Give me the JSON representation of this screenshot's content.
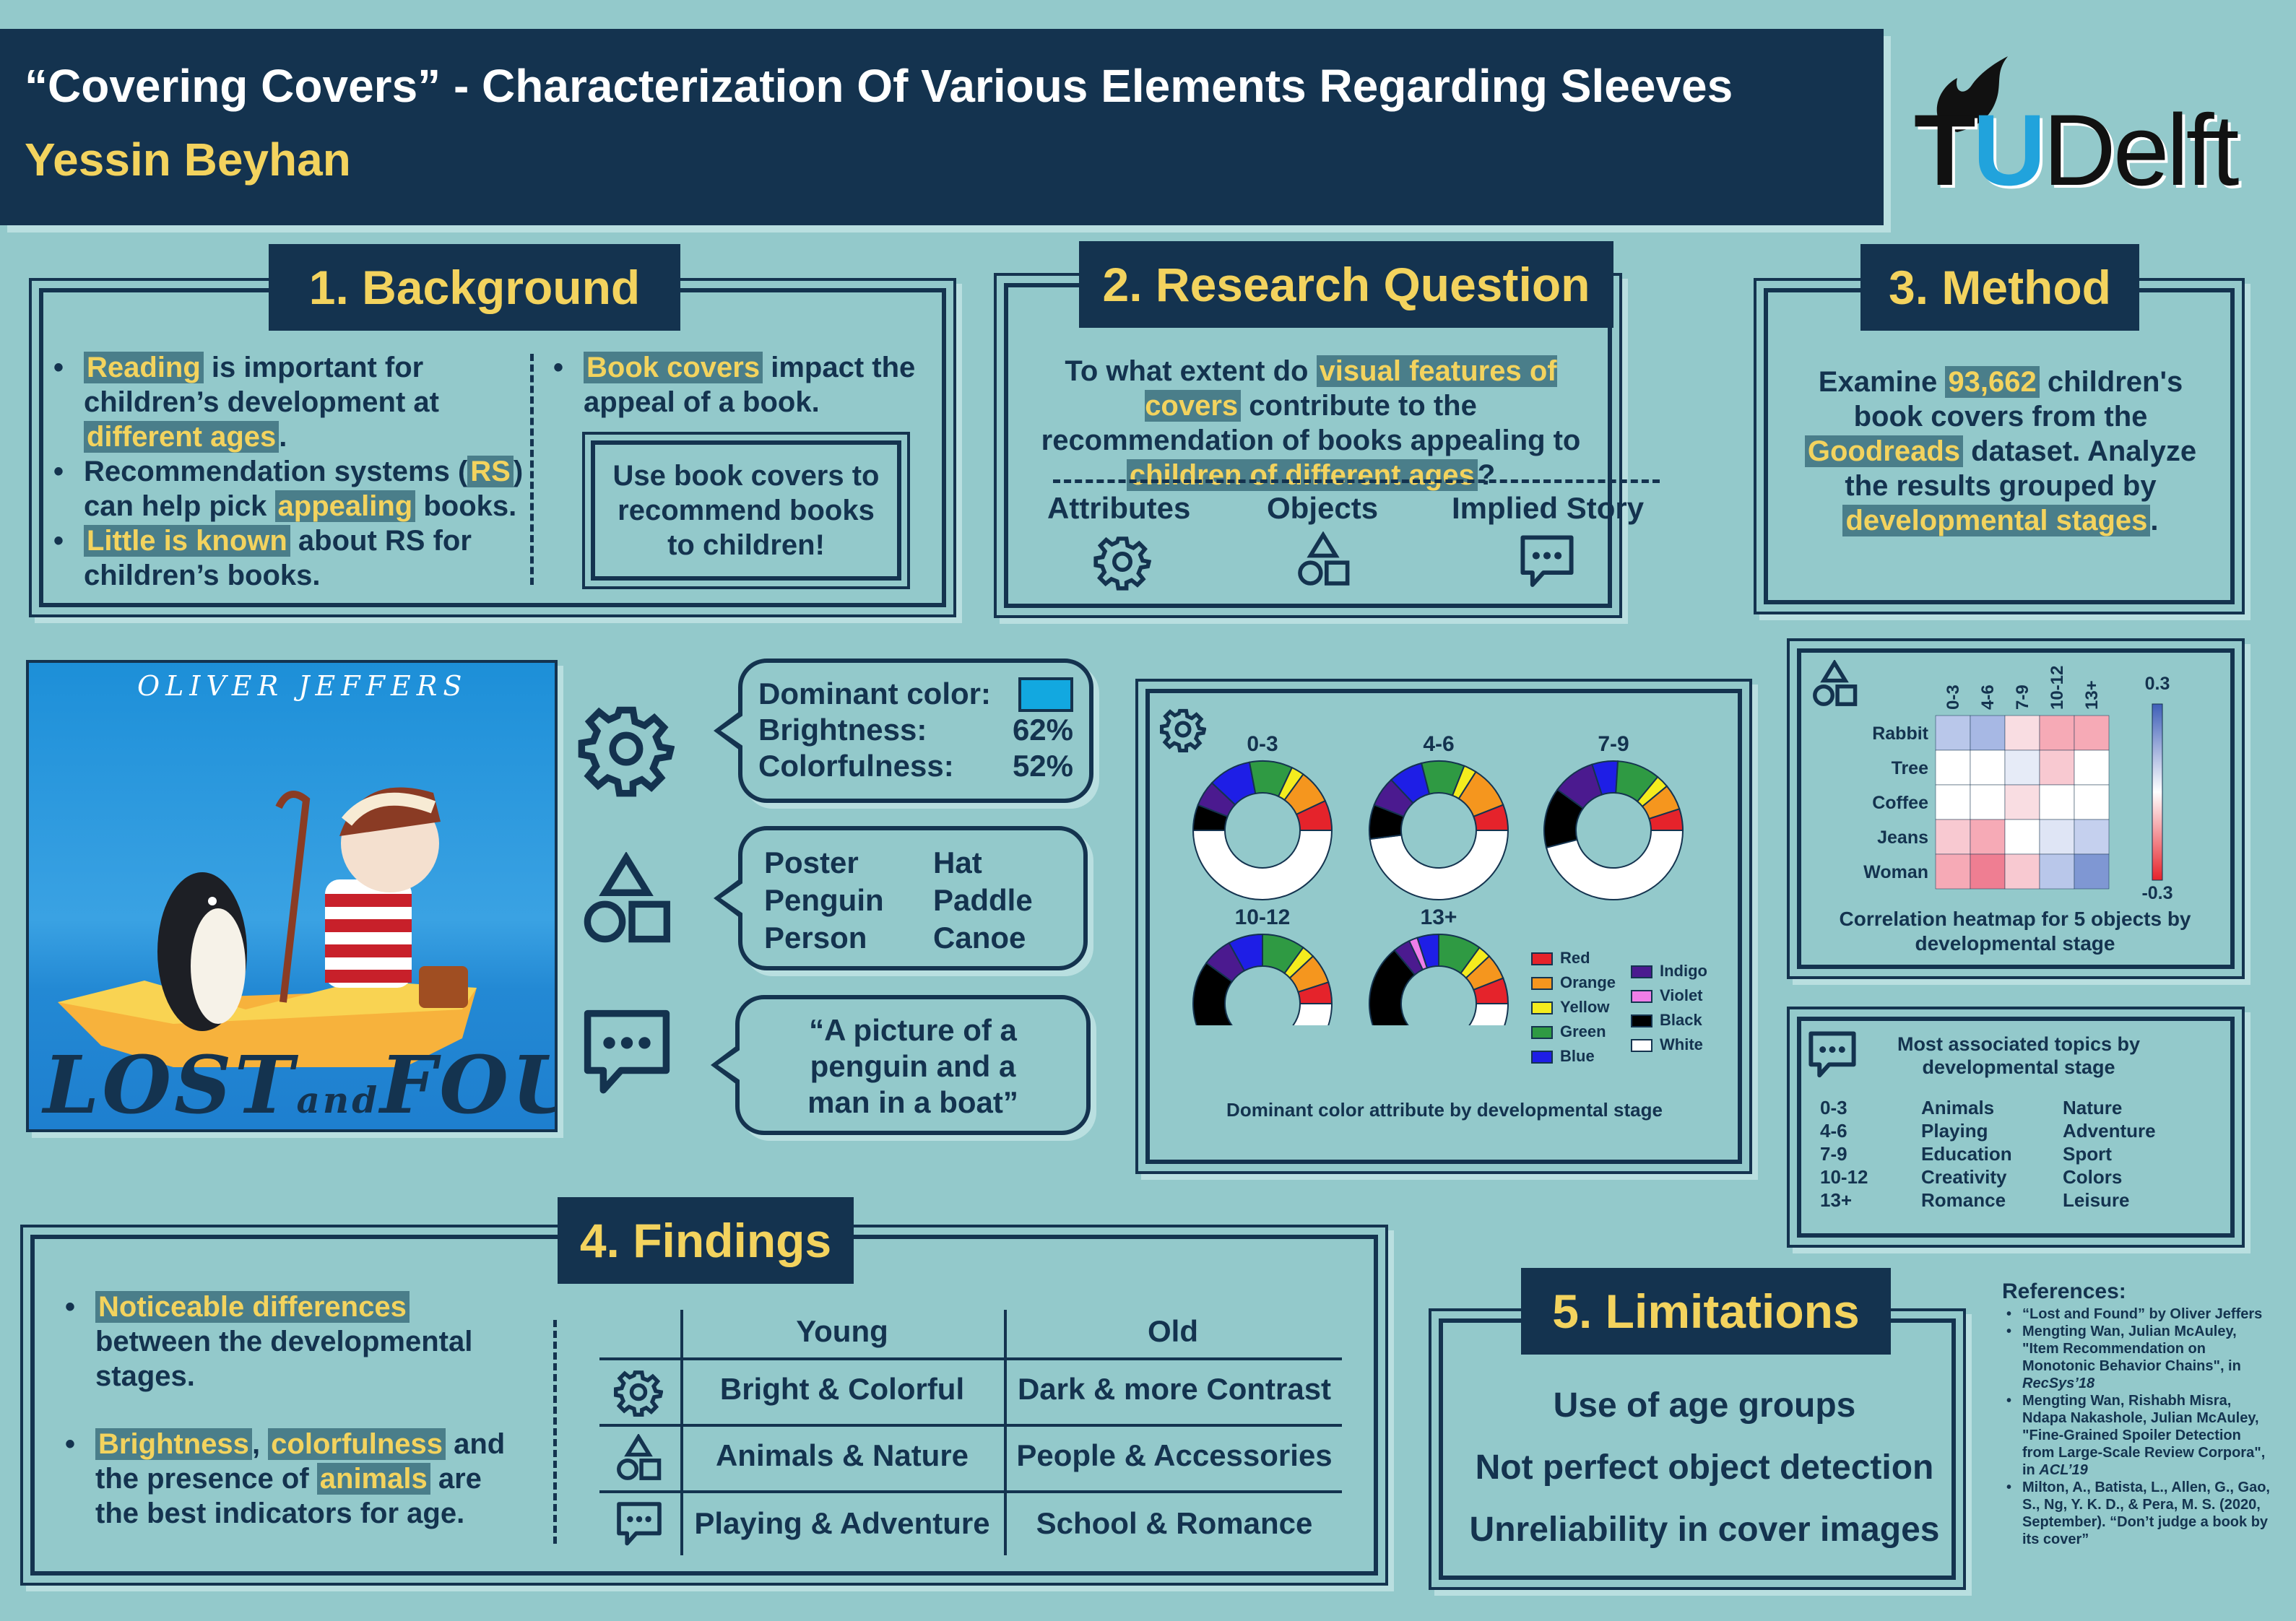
{
  "header": {
    "title": "“Covering Covers” - Characterization Of Various Elements Regarding Sleeves",
    "author": "Yessin Beyhan",
    "logo_text": "TUDelft"
  },
  "background": {
    "heading": "1. Background",
    "b1_hl1": "Reading",
    "b1_t1": " is important for children’s development at ",
    "b1_hl2": "different ages",
    "b1_t2": ".",
    "b2_t1": "Recommendation systems (",
    "b2_hl1": "RS",
    "b2_t2": ") can help pick ",
    "b2_hl2": "appealing",
    "b2_t3": " books.",
    "b3_hl1": "Little is known",
    "b3_t1": " about RS for children’s books.",
    "b4_hl1": "Book covers",
    "b4_t1": " impact the appeal of a book.",
    "inner_box": "Use book covers to recommend books to children!"
  },
  "research": {
    "heading": "2. Research Question",
    "q_t1": "To what extent do ",
    "q_hl1": "visual features of covers",
    "q_t2": " contribute to the recommendation of books appealing to ",
    "q_hl2": "children of different ages",
    "q_t3": "?",
    "cols": [
      "Attributes",
      "Objects",
      "Implied Story"
    ]
  },
  "method": {
    "heading": "3. Method",
    "t1": "Examine ",
    "hl1": "93,662",
    "t2": " children's book covers from the ",
    "hl2": "Goodreads",
    "t3": " dataset. Analyze the results grouped by ",
    "hl3": "developmental stages",
    "t4": "."
  },
  "cover": {
    "author": "OLIVER JEFFERS",
    "title": "LOST",
    "title_mid": "and",
    "title_end": "FOUND"
  },
  "bubbles": {
    "attr_label1": "Dominant color:",
    "attr_color": "#12a8e0",
    "attr_label2": "Brightness:",
    "attr_val2": "62%",
    "attr_label3": "Colorfulness:",
    "attr_val3": "52%",
    "objects": [
      "Poster",
      "Hat",
      "Penguin",
      "Paddle",
      "Person",
      "Canoe"
    ],
    "story": "“A picture of a penguin and a man in a boat”"
  },
  "donuts": {
    "caption": "Dominant color attribute by developmental stage",
    "stages": [
      "0-3",
      "4-6",
      "7-9",
      "10-12",
      "13+"
    ],
    "legend": [
      {
        "name": "Red",
        "color": "#e5232b"
      },
      {
        "name": "Orange",
        "color": "#f5961e"
      },
      {
        "name": "Yellow",
        "color": "#f4ec1e"
      },
      {
        "name": "Green",
        "color": "#2f9a43"
      },
      {
        "name": "Blue",
        "color": "#1e1ee6"
      },
      {
        "name": "Indigo",
        "color": "#4b1a8f"
      },
      {
        "name": "Violet",
        "color": "#ef7ee8"
      },
      {
        "name": "Black",
        "color": "#000000"
      },
      {
        "name": "White",
        "color": "#ffffff"
      }
    ]
  },
  "heatmap": {
    "caption": "Correlation heatmap for 5 objects by developmental stage",
    "cols": [
      "0-3",
      "4-6",
      "7-9",
      "10-12",
      "13+"
    ],
    "rows": [
      "Rabbit",
      "Tree",
      "Coffee",
      "Jeans",
      "Woman"
    ],
    "scale_max": "0.3",
    "scale_min": "-0.3"
  },
  "topics": {
    "title": "Most associated topics by developmental stage",
    "rows": [
      {
        "stage": "0-3",
        "t1": "Animals",
        "t2": "Nature"
      },
      {
        "stage": "4-6",
        "t1": "Playing",
        "t2": "Adventure"
      },
      {
        "stage": "7-9",
        "t1": "Education",
        "t2": "Sport"
      },
      {
        "stage": "10-12",
        "t1": "Creativity",
        "t2": "Colors"
      },
      {
        "stage": "13+",
        "t1": "Romance",
        "t2": "Leisure"
      }
    ]
  },
  "findings": {
    "heading": "4. Findings",
    "b1_hl": "Noticeable differences",
    "b1_t": " between the developmental stages.",
    "b2_hl1": "Brightness",
    "b2_t1": ", ",
    "b2_hl2": "colorfulness",
    "b2_t2": " and the presence of ",
    "b2_hl3": "animals",
    "b2_t3": " are the best indicators for age.",
    "col_young": "Young",
    "col_old": "Old",
    "rows": [
      {
        "young": "Bright & Colorful",
        "old": "Dark & more Contrast"
      },
      {
        "young": "Animals & Nature",
        "old": "People & Accessories"
      },
      {
        "young": "Playing & Adventure",
        "old": "School & Romance"
      }
    ]
  },
  "limitations": {
    "heading": "5. Limitations",
    "items": [
      "Use of age groups",
      "Not perfect object detection",
      "Unreliability in cover images"
    ]
  },
  "references": {
    "title": "References:",
    "r1": "“Lost and Found” by Oliver Jeffers",
    "r2a": "Mengting Wan, Julian McAuley, \"Item Recommendation on Monotonic Behavior Chains\", in ",
    "r2b": "RecSys’18",
    "r3a": "Mengting Wan, Rishabh Misra, Ndapa Nakashole, Julian McAuley, \"Fine-Grained Spoiler Detection from Large-Scale Review Corpora\", in ",
    "r3b": "ACL’19",
    "r4": "Milton, A., Batista, L., Allen, G., Gao, S., Ng, Y. K. D., & Pera, M. S. (2020, September). “Don’t judge a book by its cover”"
  }
}
